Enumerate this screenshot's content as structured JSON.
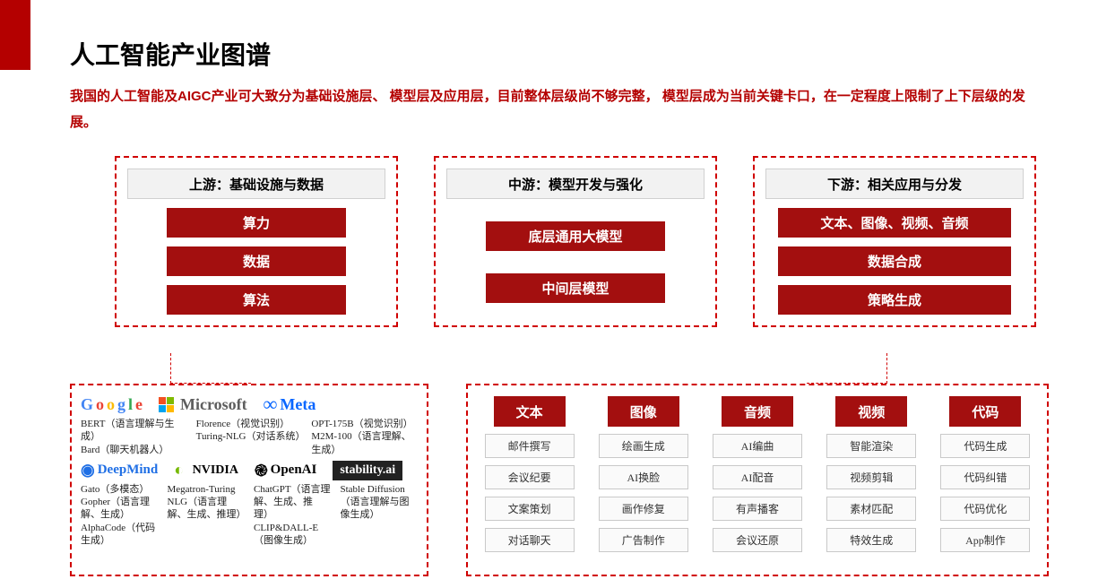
{
  "title": "人工智能产业图谱",
  "subtitle": "我国的人工智能及AIGC产业可大致分为基础设施层、 模型层及应用层，目前整体层级尚不够完整， 模型层成为当前关键卡口，在一定程度上限制了上下层级的发展。",
  "colors": {
    "accent": "#b40000",
    "block": "#a30f0f",
    "dash": "#d00000",
    "headBg": "#f2f2f2",
    "headBorder": "#d0d0d0",
    "itemBorder": "#c9c9c9",
    "itemBg": "#fafafa"
  },
  "upstream": {
    "head": "上游：基础设施与数据",
    "items": [
      "算力",
      "数据",
      "算法"
    ]
  },
  "midstream": {
    "head": "中游：模型开发与强化",
    "items": [
      "底层通用大模型",
      "中间层模型"
    ]
  },
  "downstream": {
    "head": "下游：相关应用与分发",
    "items": [
      "文本、图像、视频、音频",
      "数据合成",
      "策略生成"
    ]
  },
  "companies": {
    "row1": [
      {
        "name": "Google",
        "color": "#4285f4",
        "models": "BERT（语言理解与生成）\nBard（聊天机器人）"
      },
      {
        "name": "Microsoft",
        "color": "#5e5e5e",
        "models": "Florence（视觉识别）\nTuring-NLG（对话系统）"
      },
      {
        "name": "Meta",
        "color": "#0866ff",
        "models": "OPT-175B（视觉识别）\nM2M-100（语言理解、生成）"
      }
    ],
    "row2": [
      {
        "name": "DeepMind",
        "color": "#1f6fe5",
        "models": "Gato（多模态）\nGopher（语言理解、生成）\nAlphaCode（代码生成）"
      },
      {
        "name": "NVIDIA",
        "color": "#76b900",
        "models": "Megatron-Turing NLG（语言理解、生成、推理）"
      },
      {
        "name": "OpenAI",
        "color": "#000",
        "models": "ChatGPT（语言理解、生成、推理）\nCLIP&DALL-E（图像生成）"
      },
      {
        "name": "stability.ai",
        "color": "#fff",
        "models": "Stable Diffusion（语言理解与图像生成）"
      }
    ]
  },
  "apps": [
    {
      "head": "文本",
      "items": [
        "邮件撰写",
        "会议纪要",
        "文案策划",
        "对话聊天"
      ]
    },
    {
      "head": "图像",
      "items": [
        "绘画生成",
        "AI换脸",
        "画作修复",
        "广告制作"
      ]
    },
    {
      "head": "音频",
      "items": [
        "AI编曲",
        "AI配音",
        "有声播客",
        "会议还原"
      ]
    },
    {
      "head": "视频",
      "items": [
        "智能渲染",
        "视频剪辑",
        "素材匹配",
        "特效生成"
      ]
    },
    {
      "head": "代码",
      "items": [
        "代码生成",
        "代码纠错",
        "代码优化",
        "App制作"
      ]
    }
  ]
}
